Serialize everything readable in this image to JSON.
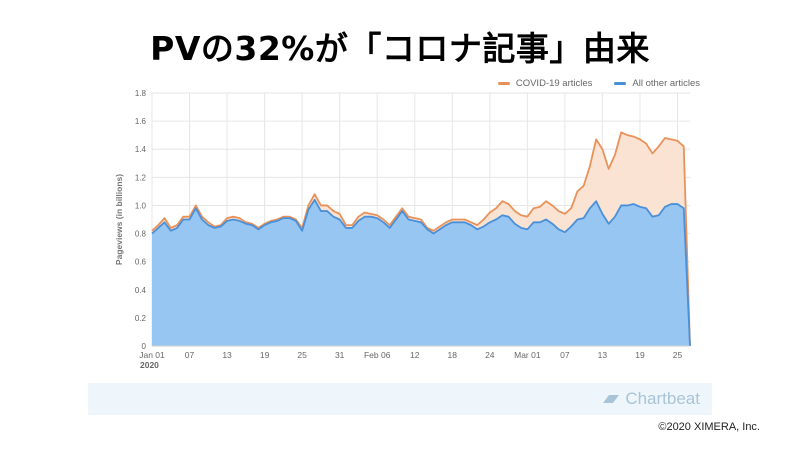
{
  "slide": {
    "title": "PVの32%が「コロナ記事」由来",
    "brand": "Chartbeat",
    "copyright": "©2020 XIMERA, Inc."
  },
  "colors": {
    "covid_line": "#e8925a",
    "covid_fill": "#fbe3d4",
    "other_line": "#4a90d9",
    "other_fill": "#98c6f2",
    "grid": "#e6e6e6",
    "axis_text": "#666666"
  },
  "chart_data": {
    "type": "area",
    "title": "",
    "xlabel": "",
    "ylabel": "Pageviews (in billions)",
    "ylim": [
      0,
      1.8
    ],
    "yticks": [
      "0",
      "0.2",
      "0.4",
      "0.6",
      "0.8",
      "1.0",
      "1.2",
      "1.4",
      "1.6",
      "1.8"
    ],
    "xticks": [
      {
        "label": "Jan 01",
        "sub": "2020",
        "day": 1
      },
      {
        "label": "07",
        "day": 7
      },
      {
        "label": "13",
        "day": 13
      },
      {
        "label": "19",
        "day": 19
      },
      {
        "label": "25",
        "day": 25
      },
      {
        "label": "31",
        "day": 31
      },
      {
        "label": "Feb 06",
        "day": 37
      },
      {
        "label": "12",
        "day": 43
      },
      {
        "label": "18",
        "day": 49
      },
      {
        "label": "24",
        "day": 55
      },
      {
        "label": "Mar 01",
        "day": 61
      },
      {
        "label": "07",
        "day": 67
      },
      {
        "label": "13",
        "day": 73
      },
      {
        "label": "19",
        "day": 79
      },
      {
        "label": "25",
        "day": 85
      }
    ],
    "grid": true,
    "legend_position": "top-right",
    "series": [
      {
        "name": "COVID-19 articles",
        "stacked_total": true,
        "values": [
          0.82,
          0.86,
          0.91,
          0.84,
          0.86,
          0.92,
          0.92,
          1.0,
          0.92,
          0.88,
          0.85,
          0.86,
          0.91,
          0.92,
          0.91,
          0.88,
          0.87,
          0.84,
          0.87,
          0.89,
          0.9,
          0.92,
          0.92,
          0.9,
          0.84,
          1.0,
          1.08,
          1.0,
          1.0,
          0.96,
          0.94,
          0.86,
          0.86,
          0.92,
          0.95,
          0.94,
          0.93,
          0.9,
          0.86,
          0.92,
          0.98,
          0.92,
          0.91,
          0.9,
          0.84,
          0.82,
          0.85,
          0.88,
          0.9,
          0.9,
          0.9,
          0.88,
          0.86,
          0.9,
          0.95,
          0.98,
          1.03,
          1.01,
          0.96,
          0.93,
          0.92,
          0.98,
          0.99,
          1.03,
          1.0,
          0.96,
          0.94,
          0.98,
          1.1,
          1.14,
          1.28,
          1.47,
          1.4,
          1.26,
          1.36,
          1.52,
          1.5,
          1.49,
          1.47,
          1.44,
          1.37,
          1.42,
          1.48,
          1.47,
          1.46,
          1.42,
          0.0
        ]
      },
      {
        "name": "All other articles",
        "values": [
          0.8,
          0.84,
          0.88,
          0.82,
          0.84,
          0.9,
          0.9,
          0.98,
          0.9,
          0.86,
          0.84,
          0.85,
          0.89,
          0.9,
          0.89,
          0.87,
          0.86,
          0.83,
          0.86,
          0.88,
          0.89,
          0.91,
          0.91,
          0.89,
          0.82,
          0.97,
          1.04,
          0.96,
          0.96,
          0.92,
          0.9,
          0.84,
          0.84,
          0.89,
          0.92,
          0.92,
          0.91,
          0.88,
          0.84,
          0.9,
          0.96,
          0.9,
          0.89,
          0.88,
          0.83,
          0.8,
          0.83,
          0.86,
          0.88,
          0.88,
          0.88,
          0.86,
          0.83,
          0.85,
          0.88,
          0.9,
          0.93,
          0.92,
          0.87,
          0.84,
          0.83,
          0.88,
          0.88,
          0.9,
          0.87,
          0.83,
          0.81,
          0.85,
          0.9,
          0.91,
          0.98,
          1.03,
          0.94,
          0.87,
          0.92,
          1.0,
          1.0,
          1.01,
          0.99,
          0.98,
          0.92,
          0.93,
          0.99,
          1.01,
          1.01,
          0.98,
          0.0
        ]
      }
    ]
  }
}
